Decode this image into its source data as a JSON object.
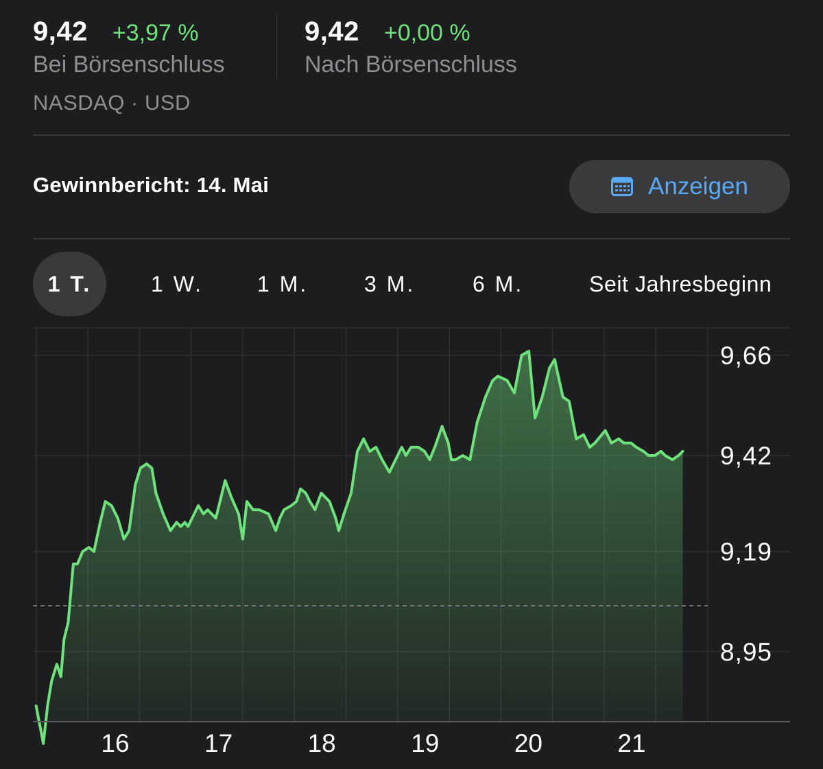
{
  "quote": {
    "close": {
      "price": "9,42",
      "change": "+3,97 %",
      "label": "Bei Börsenschluss"
    },
    "after_hours": {
      "price": "9,42",
      "change": "+0,00 %",
      "label": "Nach Börsenschluss"
    }
  },
  "exchange": "NASDAQ · USD",
  "earnings": {
    "text": "Gewinnbericht: 14. Mai",
    "button_label": "Anzeigen",
    "button_icon": "calendar-icon"
  },
  "tabs": [
    {
      "label": "1 T.",
      "active": true
    },
    {
      "label": "1 W.",
      "active": false
    },
    {
      "label": "1 M.",
      "active": false
    },
    {
      "label": "3 M.",
      "active": false
    },
    {
      "label": "6 M.",
      "active": false
    },
    {
      "label": "Seit Jahresbeginn",
      "active": false
    }
  ],
  "colors": {
    "background": "#1d1d1f",
    "positive": "#6fe27e",
    "accent": "#5aa9f5",
    "muted": "#8e8e93",
    "divider": "#3a3a3c"
  },
  "chart_data": {
    "type": "area",
    "y_ticks": [
      "9,66",
      "9,42",
      "9,19",
      "8,95"
    ],
    "y_tick_values": [
      9.66,
      9.42,
      9.19,
      8.95
    ],
    "x_ticks": [
      "16",
      "17",
      "18",
      "19",
      "20",
      "21"
    ],
    "x_tick_values": [
      16,
      17,
      18,
      19,
      20,
      21
    ],
    "previous_close": 9.06,
    "xlim": [
      15.5,
      22.38
    ],
    "ylim": [
      8.73,
      9.68
    ],
    "grid": true,
    "x": [
      15.5,
      15.57,
      15.61,
      15.65,
      15.7,
      15.74,
      15.77,
      15.81,
      15.86,
      15.9,
      15.95,
      16.01,
      16.06,
      16.12,
      16.17,
      16.23,
      16.29,
      16.35,
      16.4,
      16.46,
      16.51,
      16.57,
      16.62,
      16.66,
      16.73,
      16.8,
      16.86,
      16.9,
      16.94,
      16.97,
      17.03,
      17.07,
      17.12,
      17.16,
      17.24,
      17.33,
      17.39,
      17.46,
      17.5,
      17.54,
      17.6,
      17.66,
      17.75,
      17.82,
      17.86,
      17.9,
      17.97,
      18.02,
      18.06,
      18.11,
      18.15,
      18.2,
      18.26,
      18.34,
      18.4,
      18.43,
      18.48,
      18.55,
      18.61,
      18.67,
      18.73,
      18.79,
      18.85,
      18.92,
      18.98,
      19.04,
      19.08,
      19.13,
      19.2,
      19.26,
      19.31,
      19.36,
      19.43,
      19.49,
      19.52,
      19.56,
      19.63,
      19.7,
      19.77,
      19.85,
      19.92,
      19.97,
      20.06,
      20.13,
      20.2,
      20.27,
      20.33,
      20.4,
      20.47,
      20.52,
      20.6,
      20.66,
      20.73,
      20.8,
      20.86,
      20.91,
      21.01,
      21.07,
      21.14,
      21.19,
      21.26,
      21.31,
      21.38,
      21.43,
      21.49,
      21.55,
      21.59,
      21.66,
      21.72,
      21.76
    ],
    "y": [
      8.82,
      8.73,
      8.82,
      8.88,
      8.92,
      8.89,
      8.98,
      9.02,
      9.16,
      9.16,
      9.19,
      9.2,
      9.19,
      9.26,
      9.31,
      9.3,
      9.27,
      9.22,
      9.24,
      9.35,
      9.39,
      9.4,
      9.39,
      9.33,
      9.28,
      9.24,
      9.26,
      9.25,
      9.26,
      9.25,
      9.28,
      9.3,
      9.28,
      9.29,
      9.27,
      9.36,
      9.32,
      9.28,
      9.22,
      9.31,
      9.29,
      9.29,
      9.28,
      9.24,
      9.27,
      9.29,
      9.3,
      9.31,
      9.34,
      9.33,
      9.31,
      9.29,
      9.33,
      9.31,
      9.27,
      9.24,
      9.28,
      9.33,
      9.43,
      9.46,
      9.43,
      9.44,
      9.41,
      9.38,
      9.41,
      9.44,
      9.42,
      9.44,
      9.44,
      9.43,
      9.41,
      9.44,
      9.49,
      9.45,
      9.41,
      9.41,
      9.42,
      9.41,
      9.5,
      9.56,
      9.6,
      9.61,
      9.6,
      9.57,
      9.66,
      9.67,
      9.51,
      9.56,
      9.63,
      9.65,
      9.56,
      9.55,
      9.46,
      9.47,
      9.44,
      9.45,
      9.48,
      9.45,
      9.46,
      9.45,
      9.45,
      9.44,
      9.43,
      9.42,
      9.42,
      9.43,
      9.42,
      9.41,
      9.42,
      9.43
    ]
  }
}
